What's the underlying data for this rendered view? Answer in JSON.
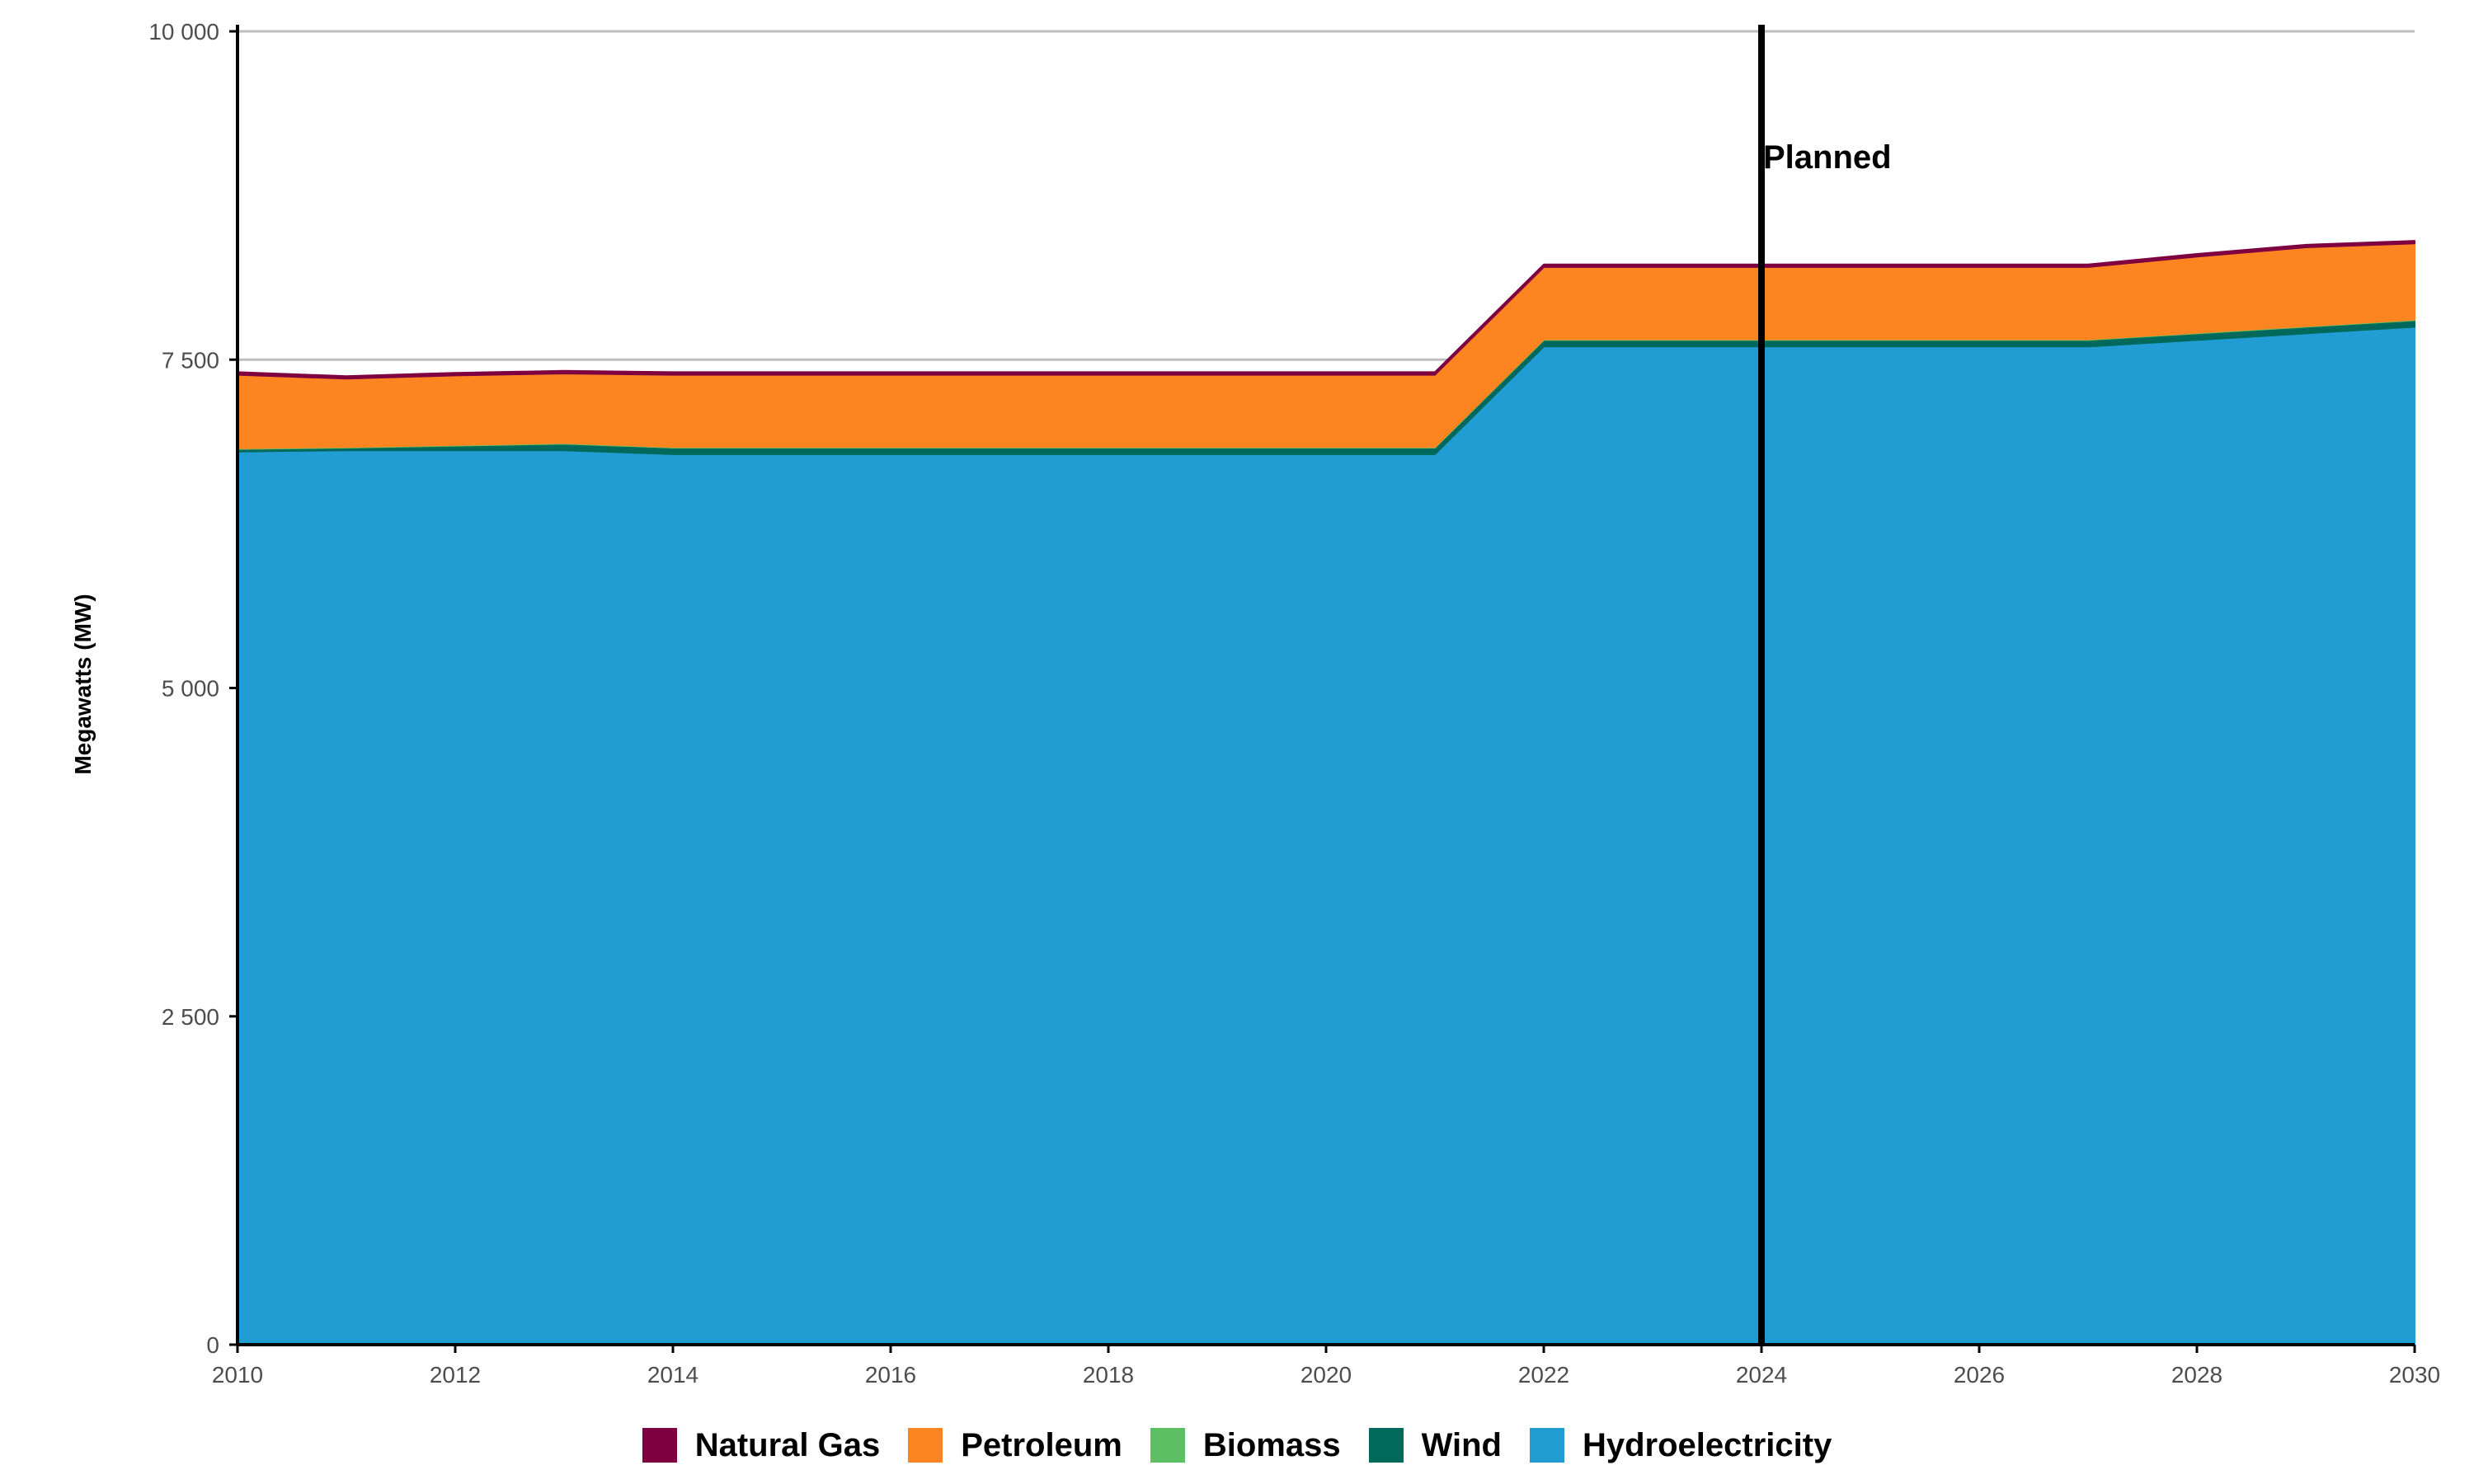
{
  "chart_data": {
    "type": "area",
    "stacked": true,
    "title": "",
    "xlabel": "",
    "ylabel": "Megawatts (MW)",
    "x": [
      2010,
      2011,
      2012,
      2013,
      2014,
      2015,
      2016,
      2017,
      2018,
      2019,
      2020,
      2021,
      2022,
      2023,
      2024,
      2025,
      2026,
      2027,
      2028,
      2029,
      2030
    ],
    "xlim": [
      2010,
      2030
    ],
    "ylim": [
      0,
      10000
    ],
    "x_ticks": [
      2010,
      2012,
      2014,
      2016,
      2018,
      2020,
      2022,
      2024,
      2026,
      2028,
      2030
    ],
    "x_tick_labels": [
      "2010",
      "2012",
      "2014",
      "2016",
      "2018",
      "2020",
      "2022",
      "2024",
      "2026",
      "2028",
      "2030"
    ],
    "y_ticks": [
      0,
      2500,
      5000,
      7500,
      10000
    ],
    "y_tick_labels": [
      "0",
      "2 500",
      "5 000",
      "7 500",
      "10 000"
    ],
    "grid": "horizontal major",
    "legend_position": "bottom",
    "series": [
      {
        "name": "Hydroelectricity",
        "color": "#229dd3",
        "values": [
          6800,
          6810,
          6810,
          6810,
          6780,
          6780,
          6780,
          6780,
          6780,
          6780,
          6780,
          6780,
          7600,
          7600,
          7600,
          7600,
          7600,
          7600,
          7650,
          7700,
          7750
        ]
      },
      {
        "name": "Wind",
        "color": "#00695c",
        "values": [
          20,
          20,
          35,
          50,
          50,
          50,
          50,
          50,
          50,
          50,
          50,
          50,
          50,
          50,
          50,
          50,
          50,
          50,
          50,
          50,
          50
        ]
      },
      {
        "name": "Biomass",
        "color": "#5cbf63",
        "values": [
          5,
          5,
          5,
          5,
          5,
          5,
          5,
          5,
          5,
          5,
          5,
          5,
          5,
          5,
          5,
          5,
          5,
          5,
          5,
          5,
          5
        ]
      },
      {
        "name": "Petroleum",
        "color": "#fd8521",
        "values": [
          560,
          520,
          530,
          530,
          550,
          550,
          550,
          550,
          550,
          550,
          550,
          550,
          550,
          550,
          550,
          550,
          550,
          550,
          580,
          600,
          580
        ]
      },
      {
        "name": "Natural Gas",
        "color": "#7f0040",
        "values": [
          20,
          20,
          20,
          20,
          20,
          20,
          20,
          20,
          20,
          20,
          20,
          20,
          20,
          20,
          20,
          20,
          20,
          20,
          20,
          20,
          20
        ]
      }
    ],
    "legend_order": [
      "Natural Gas",
      "Petroleum",
      "Biomass",
      "Wind",
      "Hydroelectricity"
    ],
    "vline": {
      "x": 2024,
      "label": "Planned"
    }
  }
}
